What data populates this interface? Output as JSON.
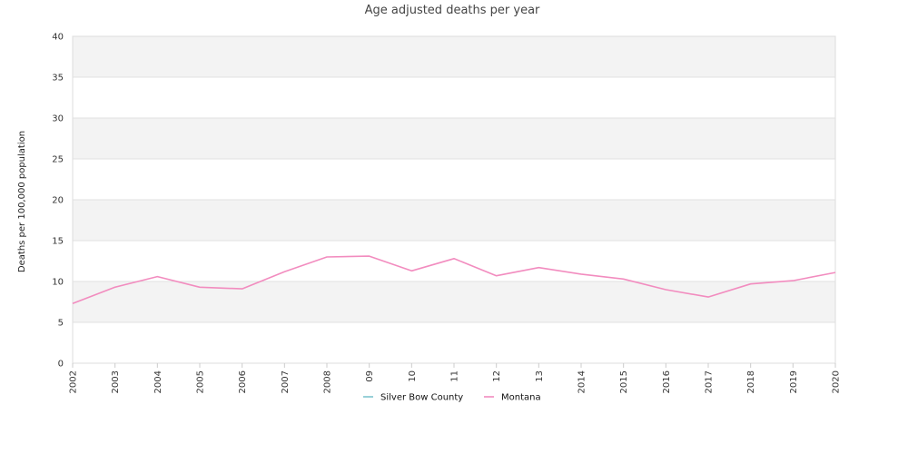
{
  "chart_data": {
    "type": "line",
    "title": "Age adjusted deaths per year",
    "xlabel": "",
    "ylabel": "Deaths per 100,000 population",
    "ylim": [
      0,
      40
    ],
    "yticks": [
      "0",
      "5",
      "10",
      "15",
      "20",
      "25",
      "30",
      "35",
      "40"
    ],
    "categories": [
      "2002",
      "2003",
      "2004",
      "2005",
      "2006",
      "2007",
      "2008",
      "09",
      "10",
      "11",
      "12",
      "13",
      "2014",
      "2015",
      "2016",
      "2017",
      "2018",
      "2019",
      "2020"
    ],
    "grid": true,
    "legend_position": "bottom",
    "series": [
      {
        "name": "Silver Bow County",
        "color": "#7fc5cf",
        "values": [
          null,
          null,
          null,
          null,
          null,
          null,
          null,
          null,
          null,
          null,
          null,
          null,
          null,
          null,
          null,
          null,
          null,
          null,
          null
        ]
      },
      {
        "name": "Montana",
        "color": "#f28cbf",
        "values": [
          7.3,
          9.3,
          10.6,
          9.3,
          9.1,
          11.2,
          13.0,
          13.1,
          11.3,
          12.8,
          10.7,
          11.7,
          10.9,
          10.3,
          9.0,
          8.1,
          9.7,
          10.1,
          11.1
        ]
      }
    ]
  }
}
